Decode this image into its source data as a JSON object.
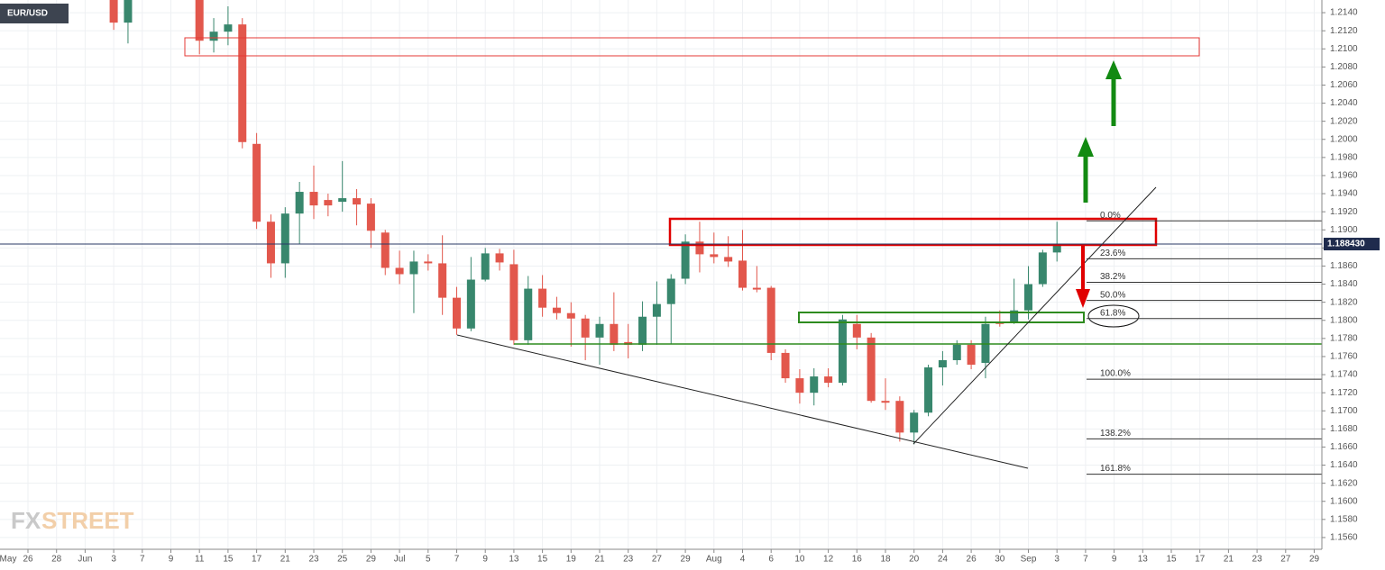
{
  "chart_data": {
    "type": "candlestick",
    "symbol": "EUR/USD",
    "watermark": [
      "FX",
      "STREET"
    ],
    "up_color": "#38876d",
    "down_color": "#e2574c",
    "grid": true,
    "ylim": [
      1.1547,
      1.2154
    ],
    "yticks": [
      {
        "value": 1.214,
        "label": "1.2140"
      },
      {
        "value": 1.212,
        "label": "1.2120"
      },
      {
        "value": 1.21,
        "label": "1.2100"
      },
      {
        "value": 1.208,
        "label": "1.2080"
      },
      {
        "value": 1.206,
        "label": "1.2060"
      },
      {
        "value": 1.204,
        "label": "1.2040"
      },
      {
        "value": 1.202,
        "label": "1.2020"
      },
      {
        "value": 1.2,
        "label": "1.2000"
      },
      {
        "value": 1.198,
        "label": "1.1980"
      },
      {
        "value": 1.196,
        "label": "1.1960"
      },
      {
        "value": 1.194,
        "label": "1.1940"
      },
      {
        "value": 1.192,
        "label": "1.1920"
      },
      {
        "value": 1.19,
        "label": "1.1900"
      },
      {
        "value": 1.188,
        "label": "1.1880"
      },
      {
        "value": 1.186,
        "label": "1.1860"
      },
      {
        "value": 1.184,
        "label": "1.1840"
      },
      {
        "value": 1.182,
        "label": "1.1820"
      },
      {
        "value": 1.18,
        "label": "1.1800"
      },
      {
        "value": 1.178,
        "label": "1.1780"
      },
      {
        "value": 1.176,
        "label": "1.1760"
      },
      {
        "value": 1.174,
        "label": "1.1740"
      },
      {
        "value": 1.172,
        "label": "1.1720"
      },
      {
        "value": 1.17,
        "label": "1.1700"
      },
      {
        "value": 1.168,
        "label": "1.1680"
      },
      {
        "value": 1.166,
        "label": "1.1660"
      },
      {
        "value": 1.164,
        "label": "1.1640"
      },
      {
        "value": 1.162,
        "label": "1.1620"
      },
      {
        "value": 1.16,
        "label": "1.1600"
      },
      {
        "value": 1.158,
        "label": "1.1580"
      },
      {
        "value": 1.156,
        "label": "1.1560"
      }
    ],
    "last_price": {
      "value": 1.18843,
      "label": "1.188430"
    },
    "fib_levels": [
      {
        "label": "0.0%",
        "value": 1.191
      },
      {
        "label": "23.6%",
        "value": 1.1868
      },
      {
        "label": "38.2%",
        "value": 1.1842
      },
      {
        "label": "50.0%",
        "value": 1.1822
      },
      {
        "label": "61.8%",
        "value": 1.1802
      },
      {
        "label": "100.0%",
        "value": 1.1735
      },
      {
        "label": "138.2%",
        "value": 1.1669
      },
      {
        "label": "161.8%",
        "value": 1.163
      }
    ],
    "categories": [
      "May",
      null,
      "26",
      null,
      "28",
      null,
      "Jun",
      null,
      "3",
      null,
      "7",
      null,
      "9",
      null,
      "11",
      null,
      "15",
      null,
      "17",
      null,
      "21",
      null,
      "23",
      null,
      "25",
      null,
      "29",
      null,
      "Jul",
      null,
      "5",
      null,
      "7",
      null,
      "9",
      null,
      "13",
      null,
      "15",
      null,
      "19",
      null,
      "21",
      null,
      "23",
      null,
      "27",
      null,
      "29",
      null,
      "Aug",
      null,
      "4",
      null,
      "6",
      null,
      "10",
      null,
      "12",
      null,
      "16",
      null,
      "18",
      null,
      "20",
      null,
      "24",
      null,
      "26",
      null,
      "30",
      null,
      "Sep",
      null,
      "3",
      null,
      "7",
      null,
      "9",
      null,
      "13",
      null,
      "15",
      null,
      "17",
      null,
      "21",
      null,
      "23",
      null,
      "27",
      null,
      "29"
    ],
    "open": [
      null,
      null,
      null,
      null,
      null,
      null,
      null,
      null,
      1.2165,
      1.2129,
      null,
      null,
      null,
      null,
      1.2172,
      1.2109,
      1.2119,
      1.2127,
      1.1995,
      1.1909,
      1.1863,
      1.1918,
      1.1942,
      1.1933,
      1.1931,
      1.1935,
      1.1929,
      1.1897,
      1.1858,
      1.1851,
      1.1865,
      1.1863,
      1.1825,
      1.1791,
      1.1845,
      1.1874,
      1.1862,
      1.1778,
      1.1835,
      1.1814,
      1.1808,
      1.1802,
      1.1781,
      1.1796,
      1.1776,
      1.1773,
      1.1804,
      1.1818,
      1.1846,
      1.1887,
      1.1873,
      1.187,
      1.1866,
      1.1836,
      1.1836,
      1.1764,
      1.1736,
      1.172,
      1.1738,
      1.1731,
      1.1796,
      1.1781,
      1.1711,
      1.1711,
      1.1676,
      1.1698,
      1.1748,
      1.1756,
      1.1773,
      1.1753,
      1.1798,
      1.1798,
      1.1811,
      1.184,
      1.1875,
      null,
      null,
      null,
      null,
      null,
      null,
      null,
      null,
      null,
      null,
      null,
      null,
      null,
      null,
      null,
      null,
      null,
      null
    ],
    "high": [
      null,
      null,
      null,
      null,
      null,
      null,
      null,
      null,
      1.2172,
      1.2168,
      null,
      null,
      null,
      null,
      1.218,
      1.2134,
      1.2147,
      1.2134,
      1.2007,
      1.1917,
      1.1925,
      1.1953,
      1.1971,
      1.194,
      1.1976,
      1.1945,
      1.1935,
      1.19,
      1.1877,
      1.1877,
      1.1873,
      1.1894,
      1.1837,
      1.187,
      1.188,
      1.1879,
      1.1878,
      1.1849,
      1.185,
      1.1826,
      1.182,
      1.1806,
      1.1804,
      1.1831,
      1.1796,
      1.1821,
      1.1843,
      1.1851,
      1.1895,
      1.1909,
      1.1897,
      1.1893,
      1.19,
      1.186,
      1.1838,
      1.1768,
      1.1746,
      1.1747,
      1.1747,
      1.1806,
      1.1806,
      1.1786,
      1.1736,
      1.1716,
      1.1701,
      1.1751,
      1.1766,
      1.1778,
      1.1778,
      1.1804,
      1.1811,
      1.1846,
      1.186,
      1.1878,
      1.1909,
      null,
      null,
      null,
      null,
      null,
      null,
      null,
      null,
      null,
      null,
      null,
      null,
      null,
      null,
      null,
      null,
      null,
      null
    ],
    "low": [
      null,
      null,
      null,
      null,
      null,
      null,
      null,
      null,
      1.2121,
      1.2106,
      null,
      null,
      null,
      null,
      1.2094,
      1.2096,
      1.2104,
      1.199,
      1.1901,
      1.1847,
      1.1847,
      1.1884,
      1.1912,
      1.1915,
      1.192,
      1.1905,
      1.188,
      1.185,
      1.184,
      1.1808,
      1.1855,
      1.1806,
      1.1784,
      1.1788,
      1.1843,
      1.1855,
      1.1773,
      1.1773,
      1.1804,
      1.1801,
      1.1771,
      1.1756,
      1.1751,
      1.1766,
      1.1758,
      1.1766,
      1.1773,
      1.1774,
      1.184,
      1.1853,
      1.1863,
      1.1859,
      1.1833,
      1.1831,
      1.1756,
      1.1731,
      1.1708,
      1.1706,
      1.1726,
      1.1728,
      1.1768,
      1.1709,
      1.1701,
      1.1666,
      1.1663,
      1.1694,
      1.1728,
      1.1751,
      1.1746,
      1.1736,
      1.1793,
      1.1796,
      1.1801,
      1.1837,
      1.1865,
      null,
      null,
      null,
      null,
      null,
      null,
      null,
      null,
      null,
      null,
      null,
      null,
      null,
      null,
      null,
      null,
      null,
      null
    ],
    "close": [
      null,
      null,
      null,
      null,
      null,
      null,
      null,
      null,
      1.2129,
      1.216,
      null,
      null,
      null,
      null,
      1.2109,
      1.2119,
      1.2127,
      1.1997,
      1.1909,
      1.1863,
      1.1918,
      1.1942,
      1.1927,
      1.1927,
      1.1935,
      1.1928,
      1.1899,
      1.1858,
      1.1851,
      1.1865,
      1.1863,
      1.1825,
      1.1791,
      1.1845,
      1.1874,
      1.1864,
      1.1778,
      1.1835,
      1.1814,
      1.1808,
      1.1802,
      1.1781,
      1.1796,
      1.1773,
      1.1773,
      1.1804,
      1.1818,
      1.1846,
      1.1887,
      1.1873,
      1.187,
      1.1865,
      1.1836,
      1.1834,
      1.1764,
      1.1736,
      1.172,
      1.1738,
      1.1731,
      1.1801,
      1.1781,
      1.1711,
      1.1709,
      1.1676,
      1.1698,
      1.1748,
      1.1756,
      1.1773,
      1.1751,
      1.1796,
      1.1796,
      1.1811,
      1.184,
      1.1875,
      1.1884,
      null,
      null,
      null,
      null,
      null,
      null,
      null,
      null,
      null,
      null,
      null,
      null,
      null,
      null,
      null,
      null,
      null,
      null
    ]
  }
}
